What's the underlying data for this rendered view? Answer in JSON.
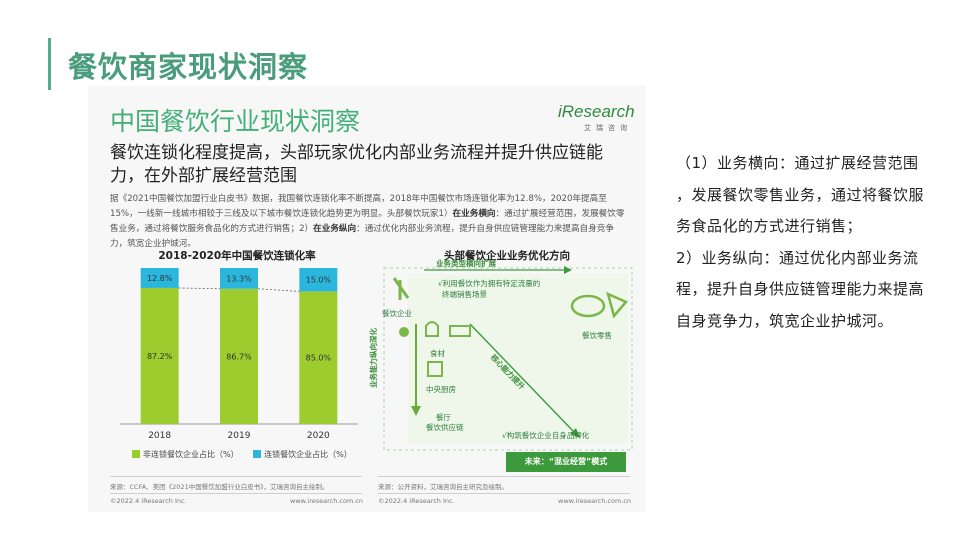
{
  "slide": {
    "title": "餐饮商家现状洞察"
  },
  "report": {
    "title": "中国餐饮行业现状洞察",
    "logo_main": "iResearch",
    "logo_sub": "艾瑞咨询",
    "subtitle": "餐饮连锁化程度提高，头部玩家优化内部业务流程并提升供应链能力，在外部扩展经营范围",
    "body_part1": "据《2021中国餐饮加盟行业白皮书》数据，我国餐饮连锁化率不断提高，2018年中国餐饮市场连锁化率为12.8%，2020年提高至15%，一线新一线城市相较于三线及以下城市餐饮连锁化趋势更为明显。头部餐饮玩家1）",
    "body_bold1": "在业务横向",
    "body_part2": "：通过扩展经营范围，发展餐饮零售业务，通过将餐饮服务食品化的方式进行销售；2）",
    "body_bold2": "在业务纵向",
    "body_part3": "：通过优化内部业务流程，提升自身供应链管理能力来提高自身竞争力，筑宽企业护城河。",
    "source_left": "来源：CCFA、美团《2021中国餐饮加盟行业白皮书》，艾瑞咨询自主绘制。",
    "source_right": "来源：公开资料，艾瑞咨询自主研究及绘制。",
    "footer_copyright_left": "©2022.4 iResearch Inc.",
    "footer_url_left": "www.iresearch.com.cn",
    "footer_copyright_right": "©2022.4 iResearch Inc.",
    "footer_url_right": "www.iresearch.com.cn"
  },
  "chart_data": {
    "type": "bar",
    "title": "2018-2020年中国餐饮连锁化率",
    "categories": [
      "2018",
      "2019",
      "2020"
    ],
    "series": [
      {
        "name": "非连锁餐饮企业占比（%）",
        "values": [
          87.2,
          86.7,
          85.0
        ],
        "labels": [
          "87.2%",
          "86.7%",
          "85.0%"
        ],
        "color": "#9dcc2e"
      },
      {
        "name": "连锁餐饮企业占比（%）",
        "values": [
          12.8,
          13.3,
          15.0
        ],
        "labels": [
          "12.8%",
          "13.3%",
          "15.0%"
        ],
        "color": "#2bb7dd"
      }
    ],
    "stacked": true,
    "ylim": [
      0,
      100
    ],
    "grid": false,
    "legend": "bottom"
  },
  "diagram": {
    "title": "头部餐饮企业业务优化方向",
    "horizontal_label": "业务类型横向扩展",
    "horizontal_desc_1": "√利用餐饮作为拥有特定流量的",
    "horizontal_desc_2": "终端销售场景",
    "catering_enterprise": "餐饮企业",
    "catering_retail": "餐饮零售",
    "ingredients": "食材",
    "central_kitchen": "中央厨房",
    "restaurant_line1": "餐厅",
    "restaurant_line2": "餐饮供应链",
    "vertical_label": "业务能力纵向深化",
    "diagonal_label": "核心能力提升",
    "brand_desc": "√构筑餐饮企业自身品牌化",
    "future_label": "未来：“混业经营”模式"
  },
  "right_text": {
    "line1": "（1）业务横向：通过扩展经营范围",
    "line2": "，发展餐饮零售业务，通过将餐饮服",
    "line3": "务食品化的方式进行销售；",
    "line4": "2）业务纵向：通过优化内部业务流",
    "line5": "程，提升自身供应链管理能力来提高",
    "line6": "自身竞争力，筑宽企业护城河。"
  },
  "colors": {
    "accent": "#4a9c7c",
    "green": "#9dcc2e",
    "blue": "#2bb7dd",
    "dark_green": "#3c9a3c"
  }
}
